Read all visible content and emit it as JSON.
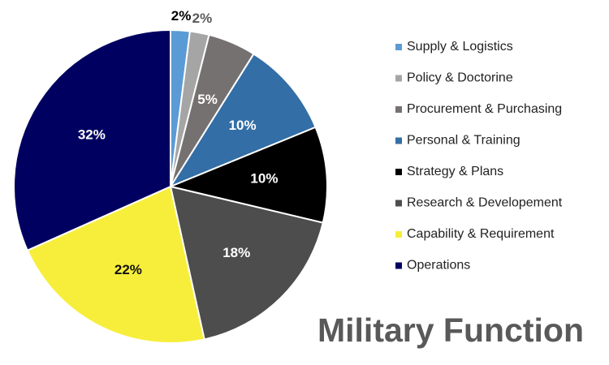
{
  "chart_data": {
    "type": "pie",
    "title": "Military Function",
    "categories": [
      "Supply & Logistics",
      "Policy & Doctorine",
      "Procurement & Purchasing",
      "Personal & Training",
      "Strategy & Plans",
      "Research & Developement",
      "Capability & Requirement",
      "Operations"
    ],
    "values": [
      2,
      2,
      5,
      10,
      10,
      18,
      22,
      32
    ],
    "value_labels": [
      "2%",
      "2%",
      "5%",
      "10%",
      "10%",
      "18%",
      "22%",
      "32%"
    ],
    "colors": [
      "#5b9bd5",
      "#a5a5a5",
      "#767171",
      "#336ea6",
      "#000000",
      "#4d4d4d",
      "#f7ee3b",
      "#000060"
    ]
  }
}
